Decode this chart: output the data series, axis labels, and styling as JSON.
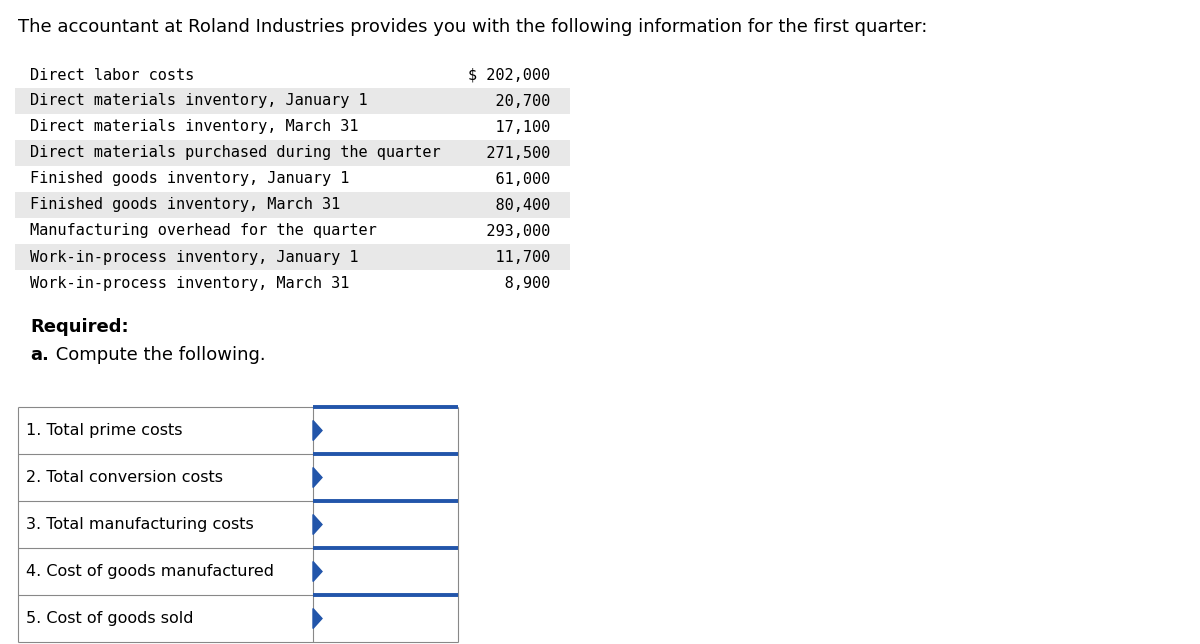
{
  "title": "The accountant at Roland Industries provides you with the following information for the first quarter:",
  "title_fontsize": 13,
  "bg_color": "#ffffff",
  "info_items": [
    [
      "Direct labor costs",
      "$ 202,000"
    ],
    [
      "Direct materials inventory, January 1",
      "    20,700"
    ],
    [
      "Direct materials inventory, March 31",
      "    17,100"
    ],
    [
      "Direct materials purchased during the quarter",
      "   271,500"
    ],
    [
      "Finished goods inventory, January 1",
      "    61,000"
    ],
    [
      "Finished goods inventory, March 31",
      "    80,400"
    ],
    [
      "Manufacturing overhead for the quarter",
      "   293,000"
    ],
    [
      "Work-in-process inventory, January 1",
      "    11,700"
    ],
    [
      "Work-in-process inventory, March 31",
      "     8,900"
    ]
  ],
  "shaded_rows": [
    1,
    3,
    5,
    7
  ],
  "shade_color": "#e8e8e8",
  "required_label": "Required:",
  "part_label_bold": "a.",
  "part_label_normal": " Compute the following.",
  "table_rows": [
    "1. Total prime costs",
    "2. Total conversion costs",
    "3. Total manufacturing costs",
    "4. Cost of goods manufactured",
    "5. Cost of goods sold"
  ],
  "arrow_color": "#2255aa",
  "border_color": "#888888",
  "mono_font": "monospace",
  "sans_font": "DejaVu Sans",
  "info_font_size": 11,
  "table_font_size": 11.5
}
